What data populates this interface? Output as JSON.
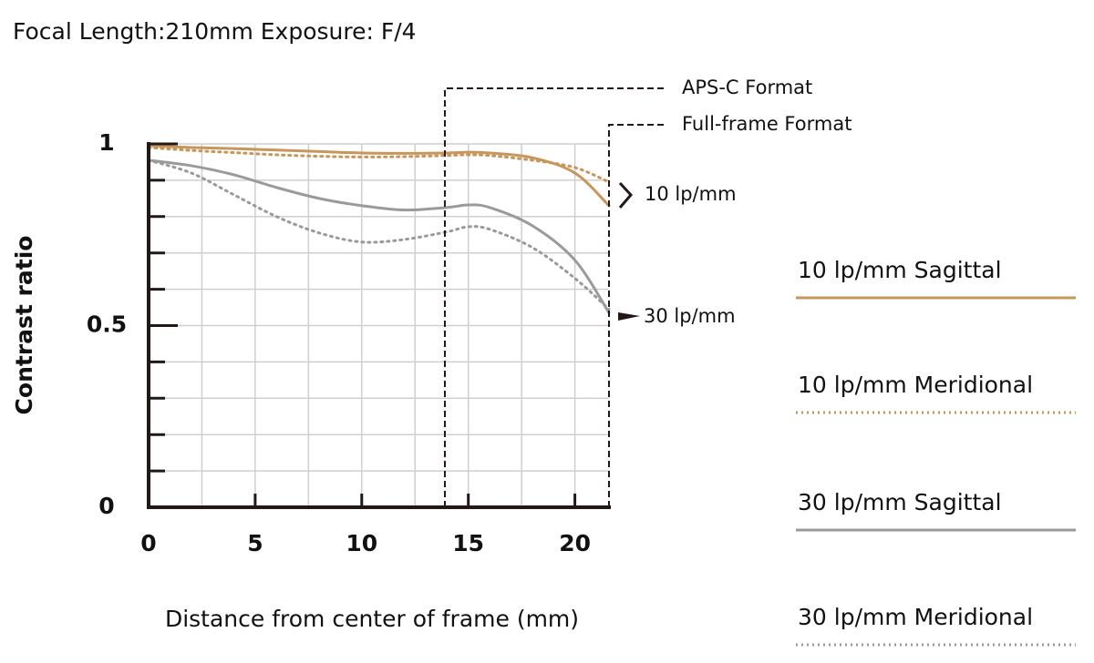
{
  "chart_data": {
    "type": "line",
    "title": "Focal Length:210mm  Exposure: F/4",
    "x_label": "Distance from center of frame (mm)",
    "y_label": "Contrast ratio",
    "x": [
      0,
      2,
      4,
      6,
      8,
      10,
      12,
      14,
      15,
      16,
      18,
      20,
      21.6
    ],
    "series": [
      {
        "name": "10 lp/mm Sagittal",
        "color": "#c8965a",
        "dash": "solid",
        "values": [
          0.995,
          0.99,
          0.987,
          0.983,
          0.979,
          0.975,
          0.974,
          0.975,
          0.977,
          0.975,
          0.962,
          0.92,
          0.83
        ]
      },
      {
        "name": "10 lp/mm Meridional",
        "color": "#c8965a",
        "dash": "dotted",
        "values": [
          0.99,
          0.982,
          0.976,
          0.97,
          0.966,
          0.964,
          0.965,
          0.968,
          0.97,
          0.968,
          0.955,
          0.935,
          0.895
        ]
      },
      {
        "name": "30 lp/mm Sagittal",
        "color": "#9a9a9a",
        "dash": "solid",
        "values": [
          0.955,
          0.94,
          0.915,
          0.88,
          0.85,
          0.83,
          0.818,
          0.825,
          0.832,
          0.825,
          0.775,
          0.68,
          0.535
        ]
      },
      {
        "name": "30 lp/mm Meridional",
        "color": "#9a9a9a",
        "dash": "dotted",
        "values": [
          0.955,
          0.92,
          0.86,
          0.8,
          0.755,
          0.73,
          0.737,
          0.758,
          0.772,
          0.765,
          0.715,
          0.63,
          0.545
        ]
      }
    ],
    "xlim": [
      0,
      21.6
    ],
    "ylim": [
      0,
      1
    ],
    "xticks": [
      0,
      5,
      10,
      15,
      20
    ],
    "yticks": [
      0,
      0.5,
      1
    ],
    "xgrid": [
      2.5,
      5,
      7.5,
      10,
      12.5,
      15,
      17.5,
      20
    ],
    "ygrid": [
      0.1,
      0.2,
      0.3,
      0.4,
      0.5,
      0.6,
      0.7,
      0.8,
      0.9,
      1
    ],
    "markers": [
      {
        "label": "APS-C Format",
        "x": 13.9
      },
      {
        "label": "Full-frame Format",
        "x": 21.6
      }
    ],
    "annotations": [
      "10 lp/mm",
      "30 lp/mm"
    ]
  }
}
